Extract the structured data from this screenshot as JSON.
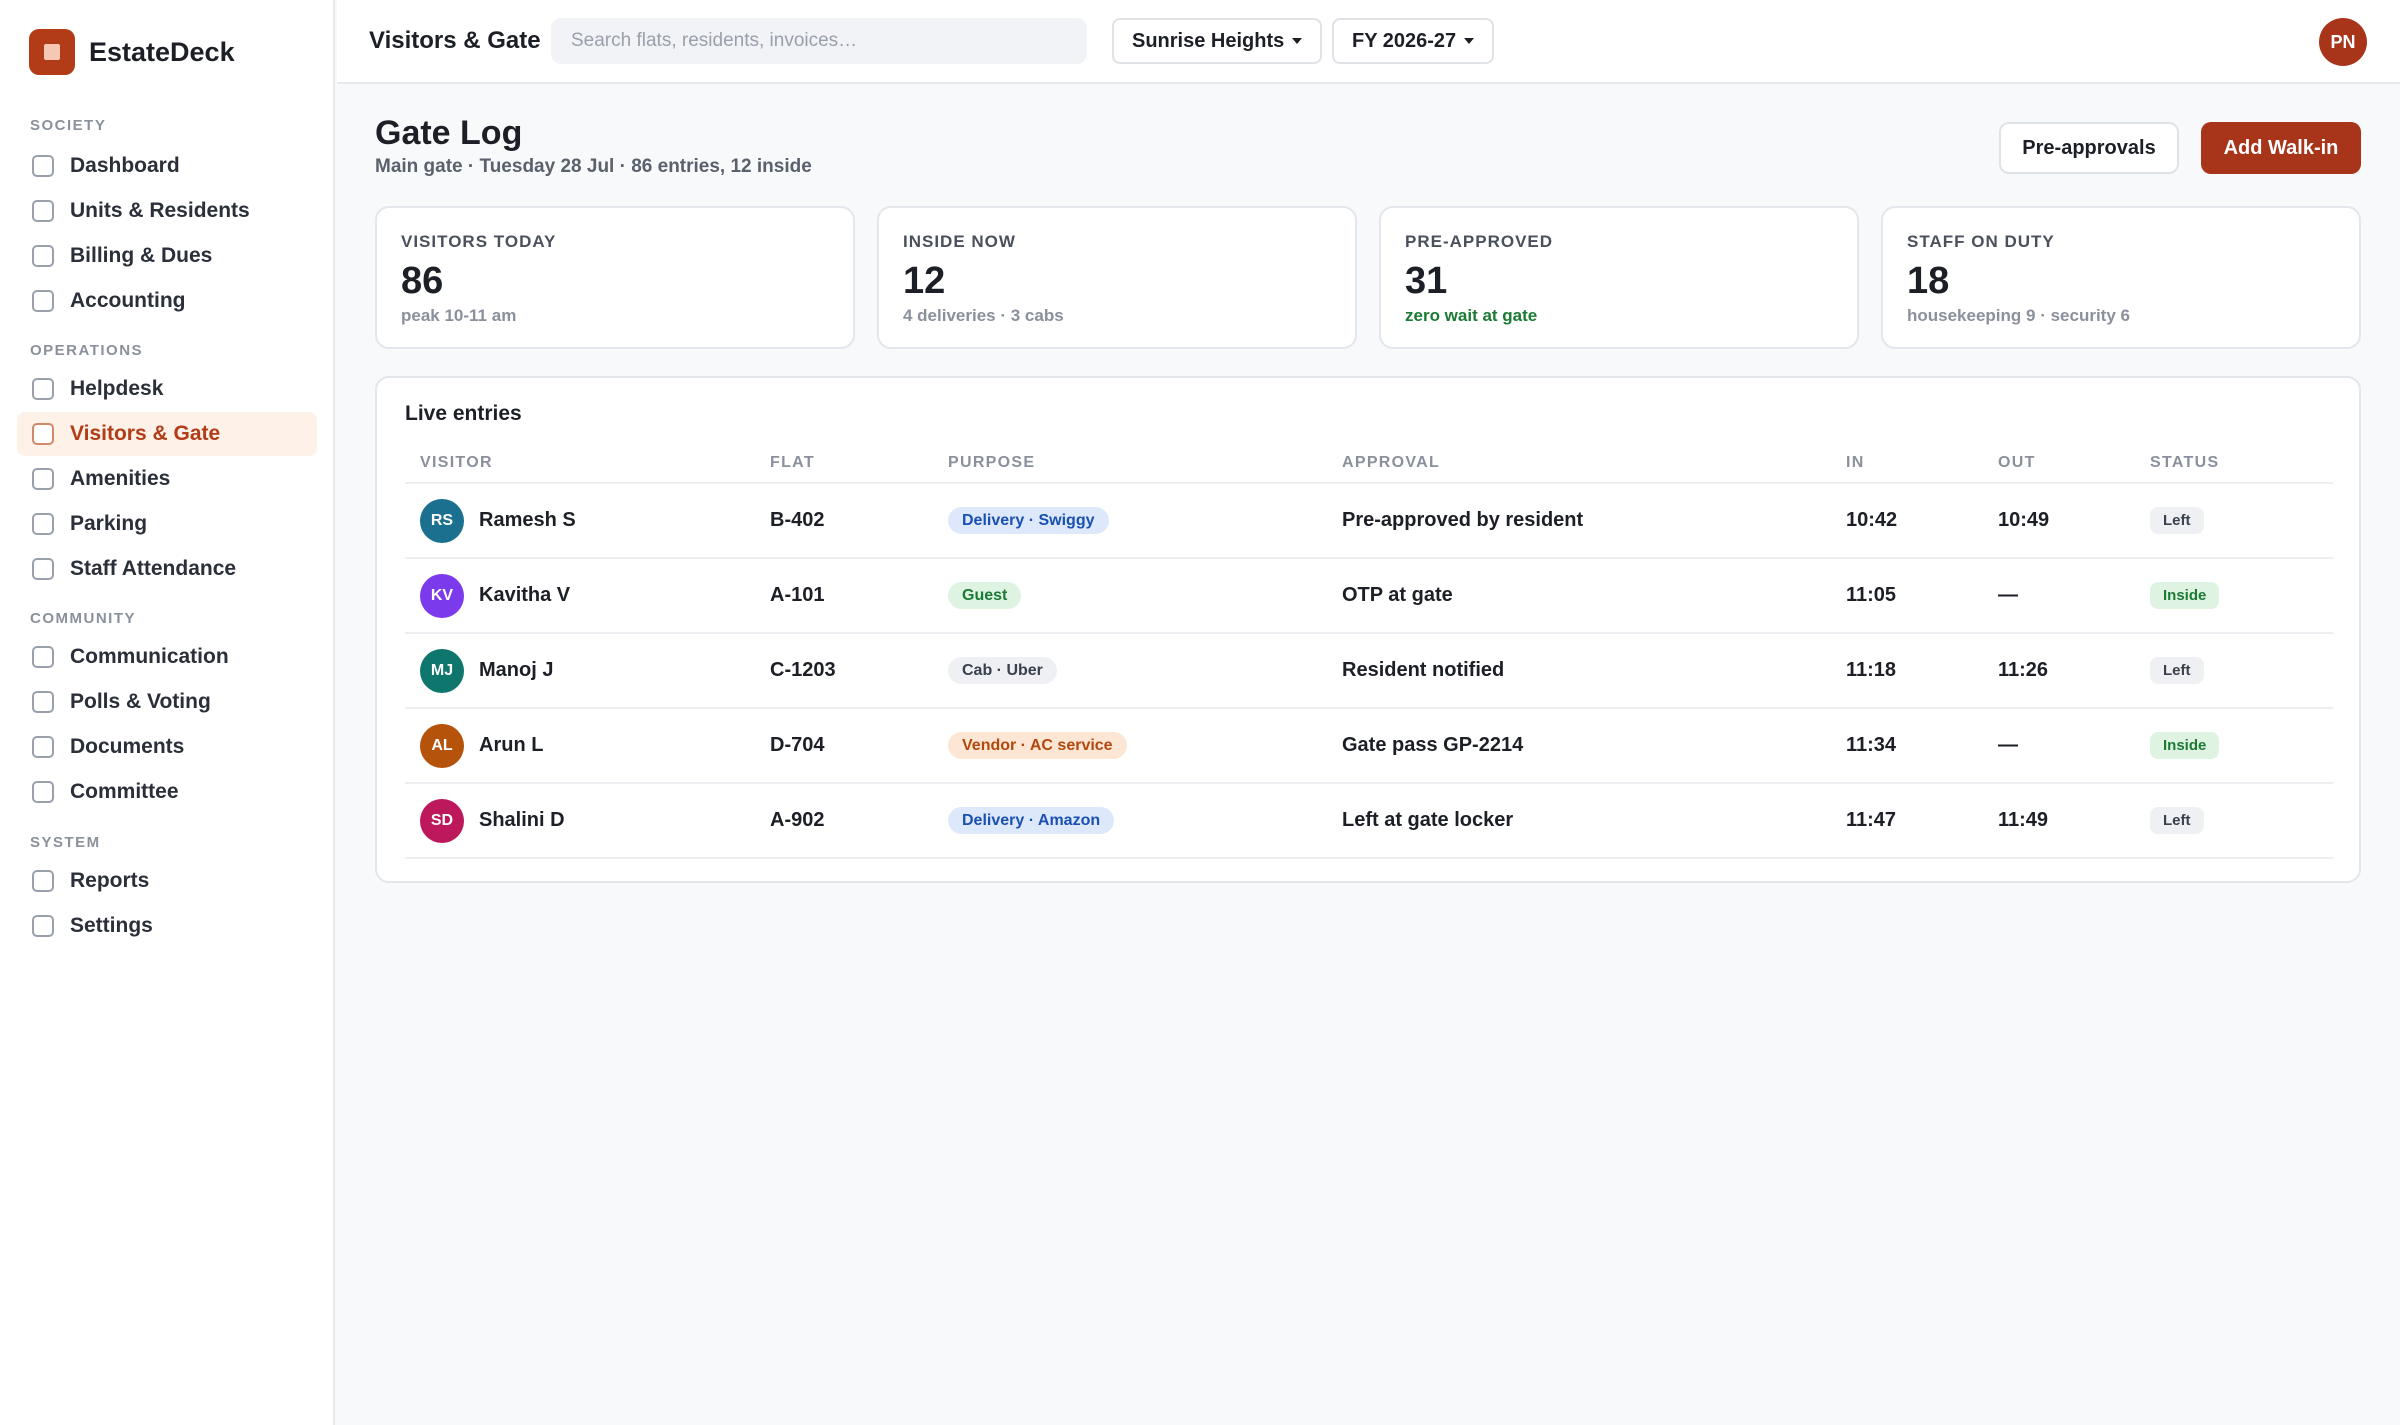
{
  "app": {
    "name": "EstateDeck"
  },
  "sidebar": {
    "sections": [
      {
        "label": "SOCIETY",
        "items": [
          "Dashboard",
          "Units & Residents",
          "Billing & Dues",
          "Accounting"
        ]
      },
      {
        "label": "OPERATIONS",
        "items": [
          "Helpdesk",
          "Visitors & Gate",
          "Amenities",
          "Parking",
          "Staff Attendance"
        ]
      },
      {
        "label": "COMMUNITY",
        "items": [
          "Communication",
          "Polls & Voting",
          "Documents",
          "Committee"
        ]
      },
      {
        "label": "SYSTEM",
        "items": [
          "Reports",
          "Settings"
        ]
      }
    ],
    "active_item": "Visitors & Gate"
  },
  "topbar": {
    "page": "Visitors & Gate",
    "search_placeholder": "Search flats, residents, invoices…",
    "society": "Sunrise Heights",
    "fiscal_year": "FY 2026-27",
    "user_initials": "PN"
  },
  "header": {
    "title": "Gate Log",
    "subtitle": "Main gate · Tuesday 28 Jul · 86 entries, 12 inside",
    "preapprovals_label": "Pre-approvals",
    "add_walkin_label": "Add Walk-in"
  },
  "stats": [
    {
      "label": "VISITORS TODAY",
      "value": "86",
      "note": "peak 10-11 am",
      "note_color": "gray"
    },
    {
      "label": "INSIDE NOW",
      "value": "12",
      "note": "4 deliveries · 3 cabs",
      "note_color": "gray"
    },
    {
      "label": "PRE-APPROVED",
      "value": "31",
      "note": "zero wait at gate",
      "note_color": "green"
    },
    {
      "label": "STAFF ON DUTY",
      "value": "18",
      "note": "housekeeping 9 · security 6",
      "note_color": "gray"
    }
  ],
  "table": {
    "title": "Live entries",
    "columns": [
      "VISITOR",
      "FLAT",
      "PURPOSE",
      "APPROVAL",
      "IN",
      "OUT",
      "STATUS"
    ],
    "rows": [
      {
        "initials": "RS",
        "avatar_color": "#1b6f8f",
        "visitor": "Ramesh S",
        "flat": "B-402",
        "purpose": "Delivery · Swiggy",
        "purpose_color": "blue",
        "approval": "Pre-approved by resident",
        "in": "10:42",
        "out": "10:49",
        "status": "Left"
      },
      {
        "initials": "KV",
        "avatar_color": "#7c3aed",
        "visitor": "Kavitha V",
        "flat": "A-101",
        "purpose": "Guest",
        "purpose_color": "green",
        "approval": "OTP at gate",
        "in": "11:05",
        "out": "—",
        "status": "Inside"
      },
      {
        "initials": "MJ",
        "avatar_color": "#0f766e",
        "visitor": "Manoj J",
        "flat": "C-1203",
        "purpose": "Cab · Uber",
        "purpose_color": "gray",
        "approval": "Resident notified",
        "in": "11:18",
        "out": "11:26",
        "status": "Left"
      },
      {
        "initials": "AL",
        "avatar_color": "#b45309",
        "visitor": "Arun L",
        "flat": "D-704",
        "purpose": "Vendor · AC service",
        "purpose_color": "orange",
        "approval": "Gate pass GP-2214",
        "in": "11:34",
        "out": "—",
        "status": "Inside"
      },
      {
        "initials": "SD",
        "avatar_color": "#be185d",
        "visitor": "Shalini D",
        "flat": "A-902",
        "purpose": "Delivery · Amazon",
        "purpose_color": "blue",
        "approval": "Left at gate locker",
        "in": "11:47",
        "out": "11:49",
        "status": "Left"
      }
    ]
  }
}
